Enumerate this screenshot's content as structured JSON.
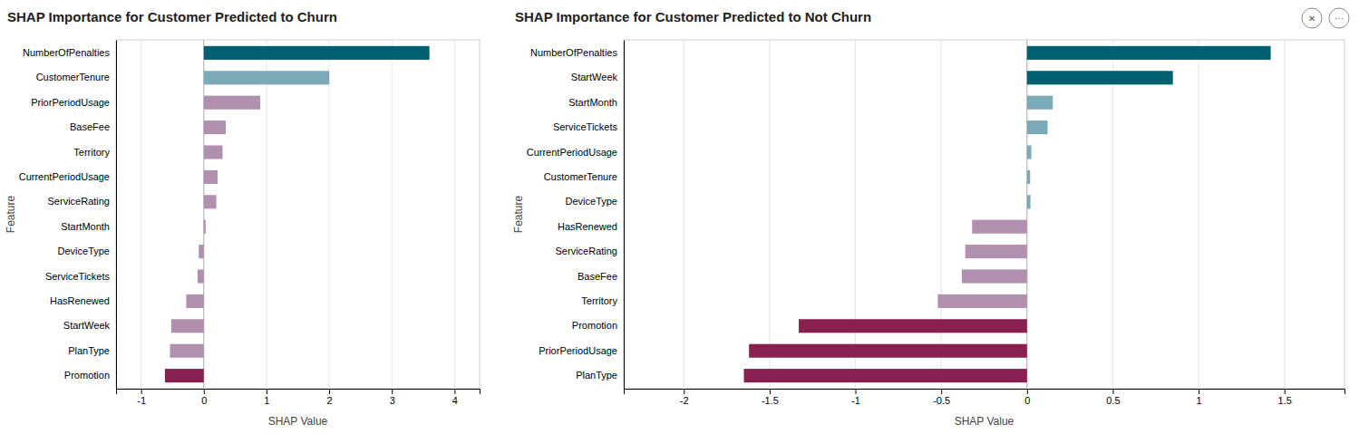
{
  "chart_data": [
    {
      "type": "bar",
      "orientation": "horizontal",
      "title": "SHAP Importance for Customer Predicted to Churn",
      "categories": [
        "NumberOfPenalties",
        "CustomerTenure",
        "PriorPeriodUsage",
        "BaseFee",
        "Territory",
        "CurrentPeriodUsage",
        "ServiceRating",
        "StartMonth",
        "DeviceType",
        "ServiceTickets",
        "HasRenewed",
        "StartWeek",
        "PlanType",
        "Promotion"
      ],
      "values": [
        3.6,
        2.0,
        0.9,
        0.35,
        0.3,
        0.22,
        0.2,
        0.03,
        -0.08,
        -0.1,
        -0.28,
        -0.52,
        -0.54,
        -0.62
      ],
      "colors": [
        "#005f6e",
        "#7baab8",
        "#b08faf",
        "#b08faf",
        "#b08faf",
        "#b08faf",
        "#b08faf",
        "#b08faf",
        "#b08faf",
        "#b08faf",
        "#b08faf",
        "#b08faf",
        "#b08faf",
        "#882050"
      ],
      "xlim": [
        -1.4,
        4.4
      ],
      "xticks": [
        -1,
        0,
        1,
        2,
        3,
        4
      ],
      "xlabel": "SHAP Value",
      "ylabel": "Feature",
      "grid": true
    },
    {
      "type": "bar",
      "orientation": "horizontal",
      "title": "SHAP Importance for Customer Predicted to Not Churn",
      "categories": [
        "NumberOfPenalties",
        "StartWeek",
        "StartMonth",
        "ServiceTickets",
        "CurrentPeriodUsage",
        "CustomerTenure",
        "DeviceType",
        "HasRenewed",
        "ServiceRating",
        "BaseFee",
        "Territory",
        "Promotion",
        "PriorPeriodUsage",
        "PlanType"
      ],
      "values": [
        1.42,
        0.85,
        0.15,
        0.12,
        0.025,
        0.018,
        0.02,
        -0.32,
        -0.36,
        -0.38,
        -0.52,
        -1.33,
        -1.62,
        -1.65
      ],
      "colors": [
        "#005f6e",
        "#005f6e",
        "#7baab8",
        "#7baab8",
        "#7baab8",
        "#7baab8",
        "#7baab8",
        "#b08faf",
        "#b08faf",
        "#b08faf",
        "#b08faf",
        "#882050",
        "#882050",
        "#882050"
      ],
      "xlim": [
        -2.35,
        1.85
      ],
      "xticks": [
        -2,
        -1.5,
        -1,
        -0.5,
        0,
        0.5,
        1,
        1.5
      ],
      "xlabel": "SHAP Value",
      "ylabel": "Feature",
      "grid": true,
      "annotations": [
        "✕",
        "···"
      ]
    }
  ]
}
